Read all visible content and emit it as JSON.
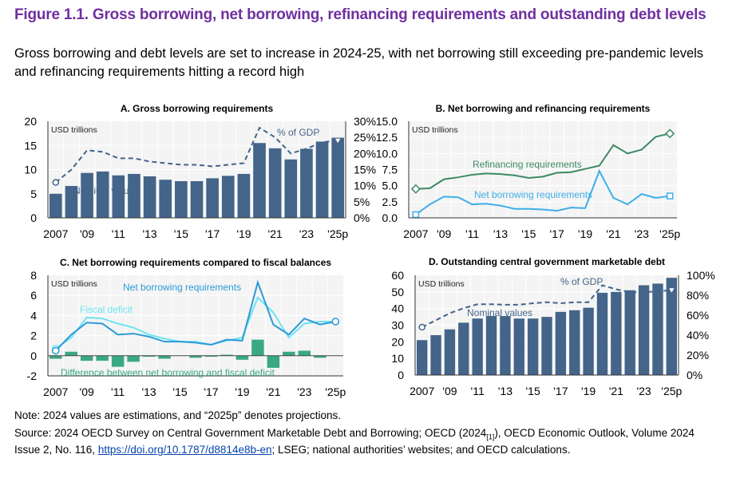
{
  "title": "Figure 1.1. Gross borrowing, net borrowing, refinancing requirements and outstanding debt levels",
  "subtitle": "Gross borrowing and debt levels are set to increase in 2024-25, with net borrowing still exceeding pre-pandemic levels and refinancing requirements hitting a record high",
  "notes": {
    "note": "Note: 2024 values are estimations, and “2025p” denotes projections.",
    "source_1": "Source: 2024 OECD Survey on Central Government Marketable Debt and Borrowing; OECD (2024",
    "source_ref": "[1]",
    "source_2": "), OECD Economic Outlook, Volume 2024",
    "source_3": "Issue 2, No. 116, ",
    "source_link": "https://doi.org/10.1787/d8814e8b-en",
    "source_4": "; LSEG; national authorities’ websites; and OECD calculations."
  },
  "colors": {
    "bar": "#44648a",
    "pct": "#44648a",
    "refi": "#3a8a64",
    "net": "#3eaee8",
    "net_c": "#2b9bd8",
    "fiscal": "#6ee3f0",
    "diff": "#3aa885",
    "title": "#7030a0"
  },
  "chart_data": [
    {
      "id": "A",
      "type": "bar",
      "title": "A. Gross borrowing requirements",
      "unit_label": "USD trillions",
      "x": [
        "2007",
        "2008",
        "2009",
        "2010",
        "2011",
        "2012",
        "2013",
        "2014",
        "2015",
        "2016",
        "2017",
        "2018",
        "2019",
        "2020",
        "2021",
        "2022",
        "2023",
        "2024",
        "2025p"
      ],
      "tick_labels": [
        "2007",
        "'09",
        "'11",
        "'13",
        "'15",
        "'17",
        "'19",
        "'21",
        "'23",
        "'25p"
      ],
      "ylim": [
        0,
        20
      ],
      "yticks": [
        "0",
        "5",
        "10",
        "15",
        "20"
      ],
      "y2lim": [
        0,
        30
      ],
      "y2ticks": [
        "0%",
        "5%",
        "10%",
        "15%",
        "20%",
        "25%",
        "30%"
      ],
      "series": [
        {
          "name": "Nominal values",
          "type": "bar",
          "axis": "left",
          "values": [
            5.0,
            6.6,
            9.3,
            9.6,
            8.8,
            9.1,
            8.6,
            7.9,
            7.6,
            7.6,
            8.2,
            8.7,
            9.1,
            15.5,
            14.4,
            12.1,
            14.3,
            15.8,
            16.6
          ]
        },
        {
          "name": "% of GDP",
          "type": "dashed-line",
          "axis": "right",
          "values": [
            11,
            15,
            21,
            20.5,
            18.5,
            18.5,
            17.5,
            17,
            16.5,
            16.5,
            16,
            16.5,
            17,
            28,
            25,
            20,
            21.5,
            23.5,
            24
          ]
        }
      ]
    },
    {
      "id": "B",
      "type": "line",
      "title": "B. Net borrowing and refinancing requirements",
      "unit_label": "USD trillions",
      "x": [
        "2007",
        "2008",
        "2009",
        "2010",
        "2011",
        "2012",
        "2013",
        "2014",
        "2015",
        "2016",
        "2017",
        "2018",
        "2019",
        "2020",
        "2021",
        "2022",
        "2023",
        "2024",
        "2025p"
      ],
      "tick_labels": [
        "2007",
        "'09",
        "'11",
        "'13",
        "'15",
        "'17",
        "'19",
        "'21",
        "'23",
        "'25p"
      ],
      "ylim": [
        0,
        15
      ],
      "yticks": [
        "0.0",
        "2.5",
        "5.0",
        "7.5",
        "10.0",
        "12.5",
        "15.0"
      ],
      "series": [
        {
          "name": "Refinancing requirements",
          "values": [
            4.5,
            4.6,
            6.0,
            6.3,
            6.7,
            6.9,
            6.8,
            6.6,
            6.2,
            6.4,
            7.0,
            7.1,
            7.6,
            8.1,
            11.3,
            10.0,
            10.6,
            12.6,
            13.1
          ]
        },
        {
          "name": "Net borrowing requirements",
          "values": [
            0.5,
            2.1,
            3.3,
            3.2,
            2.1,
            2.2,
            1.9,
            1.4,
            1.4,
            1.3,
            1.1,
            1.6,
            1.5,
            7.3,
            3.1,
            2.1,
            3.7,
            3.1,
            3.4
          ]
        }
      ]
    },
    {
      "id": "C",
      "type": "line",
      "title": "C. Net borrowing requirements compared to fiscal balances",
      "unit_label": "USD trillions",
      "x": [
        "2007",
        "2008",
        "2009",
        "2010",
        "2011",
        "2012",
        "2013",
        "2014",
        "2015",
        "2016",
        "2017",
        "2018",
        "2019",
        "2020",
        "2021",
        "2022",
        "2023",
        "2024",
        "2025p"
      ],
      "tick_labels": [
        "2007",
        "'09",
        "'11",
        "'13",
        "'15",
        "'17",
        "'19",
        "'21",
        "'23",
        "'25p"
      ],
      "ylim": [
        -2,
        8
      ],
      "yticks": [
        "-2",
        "0",
        "2",
        "4",
        "6",
        "8"
      ],
      "series": [
        {
          "name": "Difference between net borrowing and fiscal deficit",
          "type": "bar",
          "values": [
            -0.3,
            0.4,
            -0.5,
            -0.5,
            -1.1,
            -0.6,
            -0.1,
            -0.3,
            0,
            -0.2,
            -0.1,
            0.1,
            -0.4,
            1.6,
            -1.2,
            0.4,
            0.5,
            -0.2,
            0
          ]
        },
        {
          "name": "Fiscal deficit",
          "type": "line",
          "values": [
            0.7,
            1.8,
            3.8,
            3.7,
            3.2,
            2.8,
            2.1,
            1.7,
            1.4,
            1.4,
            1.1,
            1.5,
            1.8,
            5.8,
            4.3,
            1.8,
            3.2,
            3.4,
            3.4
          ]
        },
        {
          "name": "Net borrowing requirements",
          "type": "line",
          "values": [
            0.5,
            2.1,
            3.3,
            3.2,
            2.1,
            2.2,
            1.9,
            1.4,
            1.4,
            1.3,
            1.1,
            1.6,
            1.5,
            7.3,
            3.1,
            2.1,
            3.7,
            3.1,
            3.4
          ]
        }
      ]
    },
    {
      "id": "D",
      "type": "bar",
      "title": "D. Outstanding central government marketable debt",
      "unit_label": "USD trillions",
      "x": [
        "2007",
        "2008",
        "2009",
        "2010",
        "2011",
        "2012",
        "2013",
        "2014",
        "2015",
        "2016",
        "2017",
        "2018",
        "2019",
        "2020",
        "2021",
        "2022",
        "2023",
        "2024",
        "2025p"
      ],
      "tick_labels": [
        "2007",
        "'09",
        "'11",
        "'13",
        "'15",
        "'17",
        "'19",
        "'21",
        "'23",
        "'25p"
      ],
      "ylim": [
        0,
        60
      ],
      "yticks": [
        "0",
        "10",
        "20",
        "30",
        "40",
        "50",
        "60"
      ],
      "y2lim": [
        0,
        100
      ],
      "y2ticks": [
        "0%",
        "20%",
        "40%",
        "60%",
        "80%",
        "100%"
      ],
      "series": [
        {
          "name": "Nominal values",
          "type": "bar",
          "axis": "left",
          "values": [
            21,
            24,
            27.5,
            31.5,
            34,
            35.5,
            35.5,
            34,
            34,
            35,
            38,
            39,
            40.5,
            49.5,
            50,
            51,
            54,
            55,
            58.5
          ]
        },
        {
          "name": "% of GDP",
          "type": "dashed-line",
          "axis": "right",
          "values": [
            48,
            55,
            62,
            67,
            71,
            71,
            70.5,
            70.5,
            72,
            73,
            72,
            73,
            73,
            90,
            86,
            83,
            83,
            84,
            85
          ]
        }
      ]
    }
  ]
}
